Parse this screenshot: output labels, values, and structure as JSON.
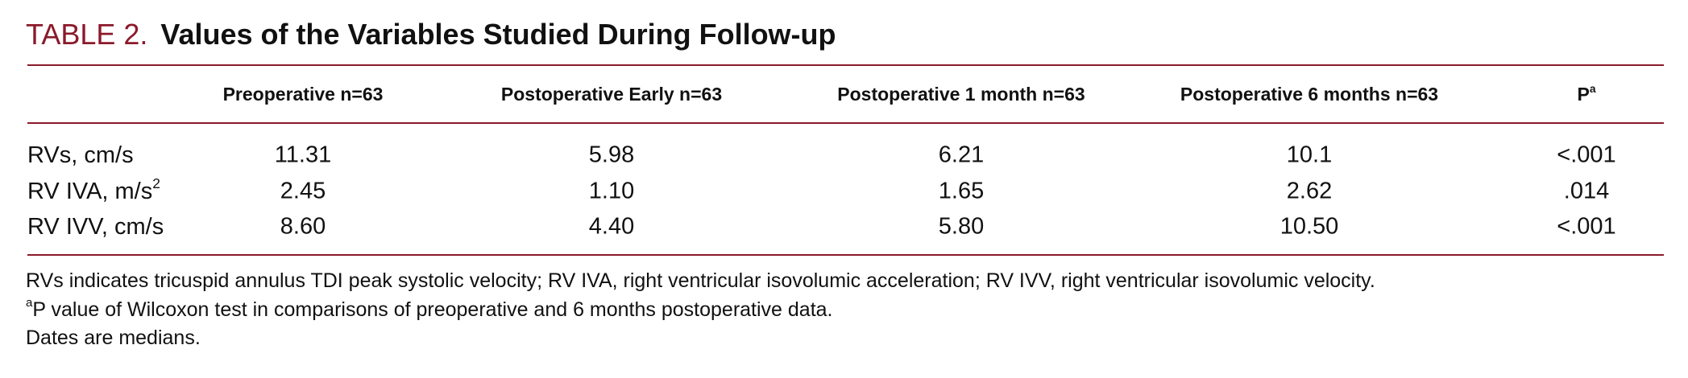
{
  "title": {
    "label": "TABLE 2.",
    "text": "Values of the Variables Studied During Follow-up"
  },
  "table": {
    "header": [
      {
        "text": "Preoperative n=63"
      },
      {
        "text": "Postoperative Early n=63"
      },
      {
        "text": "Postoperative 1 month n=63"
      },
      {
        "text": "Postoperative 6 months n=63"
      },
      {
        "text": "P",
        "sup": "a"
      }
    ],
    "rows": [
      {
        "label": {
          "text": "RVs, cm/s"
        },
        "cells": [
          "11.31",
          "5.98",
          "6.21",
          "10.1",
          "<.001"
        ]
      },
      {
        "label": {
          "text": "RV IVA, m/s",
          "sup": "2"
        },
        "cells": [
          "2.45",
          "1.10",
          "1.65",
          "2.62",
          ".014"
        ]
      },
      {
        "label": {
          "text": "RV IVV, cm/s"
        },
        "cells": [
          "8.60",
          "4.40",
          "5.80",
          "10.50",
          "<.001"
        ]
      }
    ]
  },
  "footnotes": [
    {
      "text": "RVs indicates tricuspid annulus TDI peak systolic velocity; RV IVA, right ventricular isovolumic acceleration; RV IVV, right ventricular isovolumic velocity."
    },
    {
      "sup": "a",
      "text": "P value of Wilcoxon test in comparisons of preoperative and 6 months postoperative data."
    },
    {
      "text": "Dates are medians."
    }
  ]
}
